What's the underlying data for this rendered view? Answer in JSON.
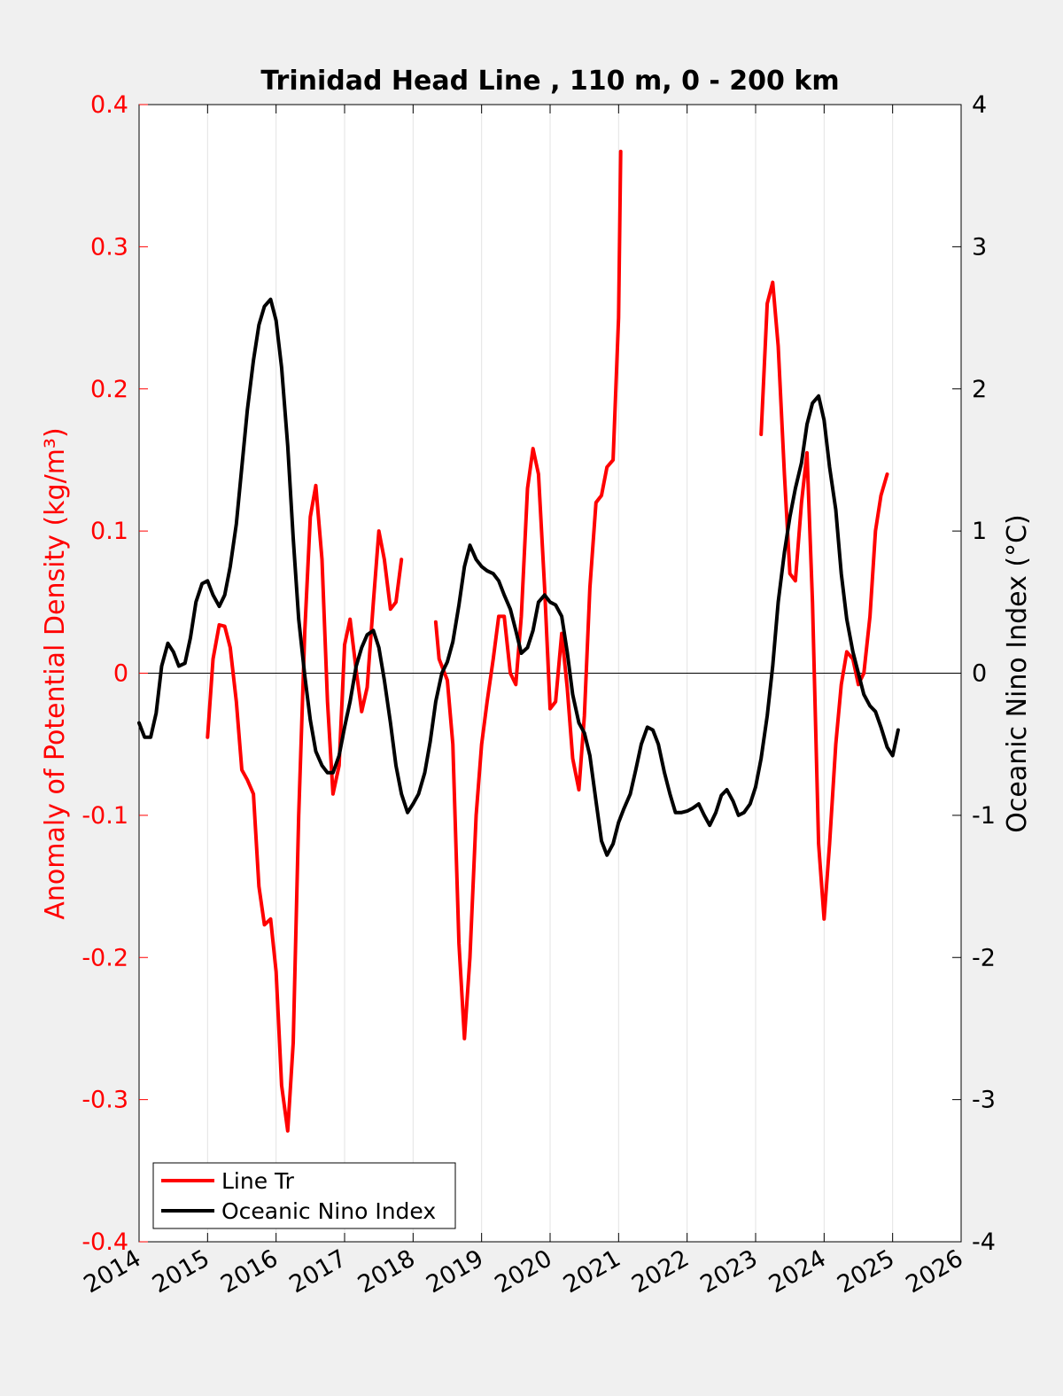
{
  "chart_data": {
    "type": "line",
    "title": "Trinidad Head Line , 110 m, 0 - 200 km",
    "xlim": [
      2014,
      2026
    ],
    "x_ticks": [
      "2014",
      "2015",
      "2016",
      "2017",
      "2018",
      "2019",
      "2020",
      "2021",
      "2022",
      "2023",
      "2024",
      "2025",
      "2026"
    ],
    "left_axis": {
      "label": "Anomaly of Potential Density (kg/m³)",
      "color": "#ff0000",
      "ylim": [
        -0.4,
        0.4
      ],
      "ticks": [
        "-0.4",
        "-0.3",
        "-0.2",
        "-0.1",
        "0",
        "0.1",
        "0.2",
        "0.3",
        "0.4"
      ]
    },
    "right_axis": {
      "label": "Oceanic Nino Index (°C)",
      "color": "#000000",
      "ylim": [
        -4,
        4
      ],
      "ticks": [
        "-4",
        "-3",
        "-2",
        "-1",
        "0",
        "1",
        "2",
        "3",
        "4"
      ]
    },
    "grid": "vertical",
    "zero_line": true,
    "legend": {
      "position": "bottom-left",
      "entries": [
        "Line Tr",
        "Oceanic Nino Index"
      ]
    },
    "series": [
      {
        "name": "Line Tr",
        "axis": "left",
        "color": "#ff0000",
        "segments": [
          [
            [
              2015.0,
              -0.045
            ],
            [
              2015.08,
              0.01
            ],
            [
              2015.17,
              0.034
            ],
            [
              2015.25,
              0.033
            ],
            [
              2015.33,
              0.018
            ],
            [
              2015.42,
              -0.02
            ],
            [
              2015.5,
              -0.068
            ],
            [
              2015.58,
              -0.075
            ],
            [
              2015.67,
              -0.085
            ],
            [
              2015.75,
              -0.15
            ],
            [
              2015.83,
              -0.177
            ],
            [
              2015.92,
              -0.173
            ],
            [
              2016.0,
              -0.21
            ],
            [
              2016.08,
              -0.29
            ],
            [
              2016.17,
              -0.322
            ],
            [
              2016.25,
              -0.26
            ],
            [
              2016.33,
              -0.1
            ],
            [
              2016.42,
              0.03
            ],
            [
              2016.5,
              0.11
            ],
            [
              2016.58,
              0.132
            ],
            [
              2016.67,
              0.08
            ],
            [
              2016.75,
              -0.02
            ],
            [
              2016.83,
              -0.085
            ],
            [
              2016.92,
              -0.065
            ],
            [
              2017.0,
              0.02
            ],
            [
              2017.08,
              0.038
            ],
            [
              2017.17,
              0.002
            ],
            [
              2017.25,
              -0.027
            ],
            [
              2017.33,
              -0.01
            ],
            [
              2017.42,
              0.05
            ],
            [
              2017.5,
              0.1
            ],
            [
              2017.58,
              0.08
            ],
            [
              2017.67,
              0.045
            ],
            [
              2017.75,
              0.05
            ],
            [
              2017.83,
              0.08
            ]
          ],
          [
            [
              2018.33,
              0.036
            ],
            [
              2018.38,
              0.01
            ],
            [
              2018.5,
              -0.005
            ],
            [
              2018.58,
              -0.05
            ],
            [
              2018.67,
              -0.19
            ],
            [
              2018.75,
              -0.257
            ],
            [
              2018.83,
              -0.2
            ],
            [
              2018.92,
              -0.1
            ],
            [
              2019.0,
              -0.05
            ],
            [
              2019.08,
              -0.02
            ],
            [
              2019.17,
              0.01
            ],
            [
              2019.25,
              0.04
            ],
            [
              2019.33,
              0.04
            ],
            [
              2019.42,
              0.0
            ],
            [
              2019.5,
              -0.008
            ],
            [
              2019.58,
              0.04
            ],
            [
              2019.67,
              0.13
            ],
            [
              2019.75,
              0.158
            ],
            [
              2019.83,
              0.14
            ],
            [
              2019.92,
              0.06
            ],
            [
              2020.0,
              -0.025
            ],
            [
              2020.08,
              -0.02
            ],
            [
              2020.17,
              0.028
            ],
            [
              2020.25,
              -0.01
            ],
            [
              2020.33,
              -0.06
            ],
            [
              2020.42,
              -0.082
            ],
            [
              2020.5,
              -0.03
            ],
            [
              2020.58,
              0.06
            ],
            [
              2020.67,
              0.12
            ],
            [
              2020.75,
              0.125
            ],
            [
              2020.83,
              0.145
            ],
            [
              2020.92,
              0.15
            ],
            [
              2021.0,
              0.25
            ],
            [
              2021.03,
              0.367
            ]
          ],
          [
            [
              2023.08,
              0.168
            ],
            [
              2023.17,
              0.26
            ],
            [
              2023.25,
              0.275
            ],
            [
              2023.33,
              0.23
            ],
            [
              2023.42,
              0.14
            ],
            [
              2023.5,
              0.07
            ],
            [
              2023.58,
              0.065
            ],
            [
              2023.67,
              0.12
            ],
            [
              2023.75,
              0.155
            ],
            [
              2023.83,
              0.05
            ],
            [
              2023.92,
              -0.12
            ],
            [
              2024.0,
              -0.173
            ],
            [
              2024.08,
              -0.12
            ],
            [
              2024.17,
              -0.05
            ],
            [
              2024.25,
              -0.008
            ],
            [
              2024.33,
              0.015
            ],
            [
              2024.42,
              0.01
            ],
            [
              2024.5,
              -0.008
            ],
            [
              2024.58,
              0.0
            ],
            [
              2024.67,
              0.04
            ],
            [
              2024.75,
              0.1
            ],
            [
              2024.83,
              0.125
            ],
            [
              2024.92,
              0.14
            ]
          ]
        ]
      },
      {
        "name": "Oceanic Nino Index",
        "axis": "right",
        "color": "#000000",
        "segments": [
          [
            [
              2014.0,
              -0.35
            ],
            [
              2014.08,
              -0.45
            ],
            [
              2014.17,
              -0.45
            ],
            [
              2014.25,
              -0.28
            ],
            [
              2014.33,
              0.05
            ],
            [
              2014.42,
              0.21
            ],
            [
              2014.5,
              0.15
            ],
            [
              2014.58,
              0.05
            ],
            [
              2014.67,
              0.07
            ],
            [
              2014.75,
              0.25
            ],
            [
              2014.83,
              0.5
            ],
            [
              2014.92,
              0.63
            ],
            [
              2015.0,
              0.65
            ],
            [
              2015.08,
              0.55
            ],
            [
              2015.17,
              0.47
            ],
            [
              2015.25,
              0.55
            ],
            [
              2015.33,
              0.75
            ],
            [
              2015.42,
              1.05
            ],
            [
              2015.5,
              1.45
            ],
            [
              2015.58,
              1.85
            ],
            [
              2015.67,
              2.2
            ],
            [
              2015.75,
              2.45
            ],
            [
              2015.83,
              2.58
            ],
            [
              2015.92,
              2.63
            ],
            [
              2016.0,
              2.48
            ],
            [
              2016.08,
              2.15
            ],
            [
              2016.17,
              1.6
            ],
            [
              2016.25,
              0.95
            ],
            [
              2016.33,
              0.38
            ],
            [
              2016.42,
              -0.02
            ],
            [
              2016.5,
              -0.33
            ],
            [
              2016.58,
              -0.55
            ],
            [
              2016.67,
              -0.65
            ],
            [
              2016.75,
              -0.7
            ],
            [
              2016.83,
              -0.7
            ],
            [
              2016.92,
              -0.58
            ],
            [
              2017.0,
              -0.38
            ],
            [
              2017.08,
              -0.2
            ],
            [
              2017.17,
              0.05
            ],
            [
              2017.25,
              0.18
            ],
            [
              2017.33,
              0.27
            ],
            [
              2017.42,
              0.3
            ],
            [
              2017.5,
              0.18
            ],
            [
              2017.58,
              -0.05
            ],
            [
              2017.67,
              -0.35
            ],
            [
              2017.75,
              -0.65
            ],
            [
              2017.83,
              -0.85
            ],
            [
              2017.92,
              -0.98
            ],
            [
              2018.0,
              -0.92
            ],
            [
              2018.08,
              -0.85
            ],
            [
              2018.17,
              -0.7
            ],
            [
              2018.25,
              -0.48
            ],
            [
              2018.33,
              -0.2
            ],
            [
              2018.42,
              0.0
            ],
            [
              2018.5,
              0.08
            ],
            [
              2018.58,
              0.22
            ],
            [
              2018.67,
              0.48
            ],
            [
              2018.75,
              0.75
            ],
            [
              2018.83,
              0.9
            ],
            [
              2018.92,
              0.8
            ],
            [
              2019.0,
              0.75
            ],
            [
              2019.08,
              0.72
            ],
            [
              2019.17,
              0.7
            ],
            [
              2019.25,
              0.65
            ],
            [
              2019.33,
              0.55
            ],
            [
              2019.42,
              0.45
            ],
            [
              2019.5,
              0.3
            ],
            [
              2019.58,
              0.14
            ],
            [
              2019.67,
              0.18
            ],
            [
              2019.75,
              0.3
            ],
            [
              2019.83,
              0.5
            ],
            [
              2019.92,
              0.55
            ],
            [
              2020.0,
              0.5
            ],
            [
              2020.08,
              0.48
            ],
            [
              2020.17,
              0.4
            ],
            [
              2020.25,
              0.15
            ],
            [
              2020.33,
              -0.15
            ],
            [
              2020.42,
              -0.35
            ],
            [
              2020.5,
              -0.42
            ],
            [
              2020.58,
              -0.58
            ],
            [
              2020.67,
              -0.9
            ],
            [
              2020.75,
              -1.18
            ],
            [
              2020.83,
              -1.28
            ],
            [
              2020.92,
              -1.2
            ],
            [
              2021.0,
              -1.05
            ],
            [
              2021.08,
              -0.95
            ],
            [
              2021.17,
              -0.85
            ],
            [
              2021.25,
              -0.68
            ],
            [
              2021.33,
              -0.5
            ],
            [
              2021.42,
              -0.38
            ],
            [
              2021.5,
              -0.4
            ],
            [
              2021.58,
              -0.5
            ],
            [
              2021.67,
              -0.7
            ],
            [
              2021.75,
              -0.85
            ],
            [
              2021.83,
              -0.98
            ],
            [
              2021.92,
              -0.98
            ],
            [
              2022.0,
              -0.97
            ],
            [
              2022.08,
              -0.95
            ],
            [
              2022.17,
              -0.92
            ],
            [
              2022.25,
              -1.0
            ],
            [
              2022.33,
              -1.07
            ],
            [
              2022.42,
              -0.98
            ],
            [
              2022.5,
              -0.86
            ],
            [
              2022.58,
              -0.82
            ],
            [
              2022.67,
              -0.9
            ],
            [
              2022.75,
              -1.0
            ],
            [
              2022.83,
              -0.98
            ],
            [
              2022.92,
              -0.92
            ],
            [
              2023.0,
              -0.8
            ],
            [
              2023.08,
              -0.6
            ],
            [
              2023.17,
              -0.3
            ],
            [
              2023.25,
              0.05
            ],
            [
              2023.33,
              0.5
            ],
            [
              2023.42,
              0.85
            ],
            [
              2023.5,
              1.1
            ],
            [
              2023.58,
              1.3
            ],
            [
              2023.67,
              1.48
            ],
            [
              2023.75,
              1.75
            ],
            [
              2023.83,
              1.9
            ],
            [
              2023.92,
              1.95
            ],
            [
              2024.0,
              1.78
            ],
            [
              2024.08,
              1.45
            ],
            [
              2024.17,
              1.15
            ],
            [
              2024.25,
              0.7
            ],
            [
              2024.33,
              0.38
            ],
            [
              2024.42,
              0.15
            ],
            [
              2024.5,
              0.0
            ],
            [
              2024.58,
              -0.15
            ],
            [
              2024.67,
              -0.23
            ],
            [
              2024.75,
              -0.27
            ],
            [
              2024.83,
              -0.38
            ],
            [
              2024.92,
              -0.52
            ],
            [
              2025.0,
              -0.58
            ],
            [
              2025.08,
              -0.4
            ]
          ]
        ]
      }
    ]
  }
}
